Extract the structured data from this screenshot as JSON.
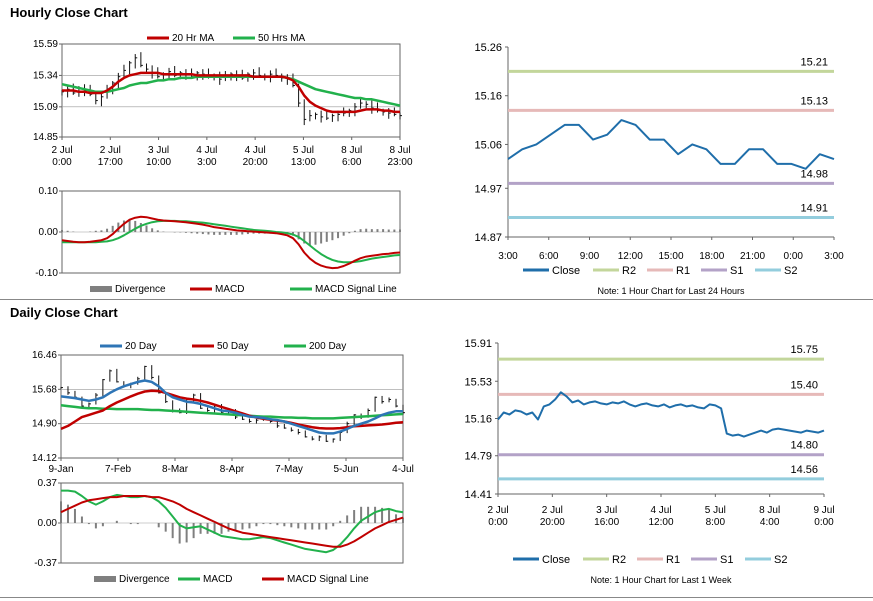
{
  "sections": {
    "hourly_title": "Hourly Close Chart",
    "daily_title": "Daily Close Chart"
  },
  "colors": {
    "red": "#c00000",
    "green": "#22b14c",
    "blue": "#2e75b6",
    "close_blue": "#1f6eaa",
    "gray": "#7f7f7f",
    "r2": "#c3d69b",
    "r1": "#e6b9b8",
    "s1": "#b3a2c7",
    "s2": "#93cddd"
  },
  "chart_data": [
    {
      "id": "hourly_price",
      "type": "line",
      "title": "Hourly Close Chart",
      "legend": [
        "20 Hr MA",
        "50 Hrs MA"
      ],
      "ylim": [
        14.85,
        15.59
      ],
      "y_ticks": [
        "15.59",
        "15.34",
        "15.09",
        "14.85"
      ],
      "x_ticks": [
        [
          "2 Jul",
          "0:00"
        ],
        [
          "2 Jul",
          "17:00"
        ],
        [
          "3 Jul",
          "10:00"
        ],
        [
          "4 Jul",
          "3:00"
        ],
        [
          "4 Jul",
          "20:00"
        ],
        [
          "5 Jul",
          "13:00"
        ],
        [
          "8 Jul",
          "6:00"
        ],
        [
          "8 Jul",
          "23:00"
        ]
      ],
      "price": [
        15.21,
        15.23,
        15.2,
        15.24,
        15.22,
        15.19,
        15.14,
        15.17,
        15.22,
        15.28,
        15.33,
        15.38,
        15.44,
        15.48,
        15.42,
        15.39,
        15.36,
        15.33,
        15.35,
        15.37,
        15.34,
        15.36,
        15.35,
        15.33,
        15.36,
        15.35,
        15.33,
        15.34,
        15.31,
        15.33,
        15.35,
        15.34,
        15.32,
        15.35,
        15.36,
        15.34,
        15.33,
        15.35,
        15.34,
        15.32,
        15.31,
        15.26,
        15.12,
        14.99,
        15.02,
        15.03,
        15.01,
        15.0,
        15.02,
        15.03,
        15.04,
        15.06,
        15.09,
        15.12,
        15.11,
        15.08,
        15.06,
        15.05,
        15.04,
        15.03,
        15.02
      ],
      "ma20": [
        15.22,
        15.22,
        15.22,
        15.21,
        15.21,
        15.2,
        15.2,
        15.2,
        15.22,
        15.25,
        15.29,
        15.32,
        15.34,
        15.35,
        15.36,
        15.36,
        15.36,
        15.36,
        15.35,
        15.35,
        15.35,
        15.35,
        15.35,
        15.35,
        15.34,
        15.34,
        15.34,
        15.34,
        15.34,
        15.34,
        15.34,
        15.34,
        15.34,
        15.34,
        15.33,
        15.33,
        15.33,
        15.33,
        15.33,
        15.33,
        15.32,
        15.3,
        15.25,
        15.18,
        15.13,
        15.1,
        15.08,
        15.06,
        15.05,
        15.05,
        15.05,
        15.05,
        15.05,
        15.06,
        15.07,
        15.07,
        15.07,
        15.06,
        15.06,
        15.05,
        15.05
      ],
      "ma50": [
        15.27,
        15.26,
        15.25,
        15.24,
        15.23,
        15.22,
        15.21,
        15.21,
        15.21,
        15.22,
        15.23,
        15.24,
        15.26,
        15.27,
        15.28,
        15.28,
        15.29,
        15.3,
        15.3,
        15.31,
        15.31,
        15.32,
        15.32,
        15.32,
        15.33,
        15.33,
        15.33,
        15.33,
        15.33,
        15.33,
        15.33,
        15.33,
        15.33,
        15.33,
        15.33,
        15.33,
        15.33,
        15.33,
        15.33,
        15.33,
        15.32,
        15.31,
        15.29,
        15.27,
        15.25,
        15.23,
        15.22,
        15.21,
        15.2,
        15.19,
        15.18,
        15.17,
        15.16,
        15.16,
        15.15,
        15.15,
        15.14,
        15.13,
        15.12,
        15.11,
        15.1
      ]
    },
    {
      "id": "hourly_macd",
      "type": "bar",
      "legend": [
        "Divergence",
        "MACD",
        "MACD Signal Line"
      ],
      "ylim": [
        -0.1,
        0.1
      ],
      "y_ticks": [
        "0.10",
        "0.00",
        "-0.10"
      ],
      "macd": [
        -0.02,
        -0.022,
        -0.024,
        -0.025,
        -0.025,
        -0.024,
        -0.022,
        -0.02,
        -0.015,
        -0.005,
        0.008,
        0.02,
        0.03,
        0.035,
        0.037,
        0.036,
        0.033,
        0.03,
        0.028,
        0.027,
        0.026,
        0.025,
        0.024,
        0.022,
        0.02,
        0.018,
        0.015,
        0.012,
        0.01,
        0.008,
        0.006,
        0.004,
        0.003,
        0.002,
        0.001,
        0.0,
        -0.001,
        -0.002,
        -0.003,
        -0.005,
        -0.008,
        -0.015,
        -0.03,
        -0.05,
        -0.065,
        -0.075,
        -0.082,
        -0.086,
        -0.088,
        -0.087,
        -0.083,
        -0.077,
        -0.07,
        -0.064,
        -0.06,
        -0.058,
        -0.056,
        -0.054,
        -0.053,
        -0.051,
        -0.05
      ],
      "signal": [
        -0.025,
        -0.025,
        -0.025,
        -0.025,
        -0.025,
        -0.025,
        -0.025,
        -0.024,
        -0.023,
        -0.02,
        -0.015,
        -0.008,
        0.0,
        0.008,
        0.015,
        0.02,
        0.024,
        0.026,
        0.027,
        0.027,
        0.027,
        0.026,
        0.026,
        0.025,
        0.024,
        0.023,
        0.021,
        0.019,
        0.017,
        0.015,
        0.013,
        0.011,
        0.009,
        0.007,
        0.005,
        0.004,
        0.003,
        0.002,
        0.0,
        -0.001,
        -0.003,
        -0.006,
        -0.012,
        -0.022,
        -0.033,
        -0.044,
        -0.054,
        -0.062,
        -0.068,
        -0.072,
        -0.074,
        -0.074,
        -0.073,
        -0.071,
        -0.068,
        -0.065,
        -0.063,
        -0.061,
        -0.059,
        -0.057,
        -0.056
      ]
    },
    {
      "id": "hourly_24h",
      "type": "line",
      "ylim": [
        14.87,
        15.26
      ],
      "y_ticks": [
        "15.26",
        "15.16",
        "15.06",
        "14.97",
        "14.87"
      ],
      "x_ticks": [
        "3:00",
        "6:00",
        "9:00",
        "12:00",
        "15:00",
        "18:00",
        "21:00",
        "0:00",
        "3:00"
      ],
      "close": [
        15.03,
        15.05,
        15.06,
        15.08,
        15.1,
        15.1,
        15.07,
        15.08,
        15.11,
        15.1,
        15.07,
        15.07,
        15.04,
        15.06,
        15.05,
        15.02,
        15.02,
        15.05,
        15.05,
        15.02,
        15.02,
        15.01,
        15.04,
        15.03
      ],
      "levels": {
        "R2": 15.21,
        "R1": 15.13,
        "S1": 14.98,
        "S2": 14.91
      },
      "level_labels": {
        "R2": "15.21",
        "R1": "15.13",
        "S1": "14.98",
        "S2": "14.91"
      },
      "legend": [
        "Close",
        "R2",
        "R1",
        "S1",
        "S2"
      ],
      "note": "Note: 1 Hour Chart for Last 24 Hours"
    },
    {
      "id": "daily_price",
      "type": "line",
      "title": "Daily Close Chart",
      "legend": [
        "20 Day",
        "50 Day",
        "200 Day"
      ],
      "ylim": [
        14.12,
        16.46
      ],
      "y_ticks": [
        "16.46",
        "15.68",
        "14.90",
        "14.12"
      ],
      "x_ticks": [
        "9-Jan",
        "7-Feb",
        "8-Mar",
        "8-Apr",
        "7-May",
        "5-Jun",
        "4-Jul"
      ],
      "price": [
        15.72,
        15.6,
        15.5,
        15.3,
        15.35,
        15.55,
        15.9,
        16.1,
        15.85,
        15.75,
        15.8,
        15.92,
        16.2,
        15.95,
        15.6,
        15.4,
        15.2,
        15.15,
        15.45,
        15.55,
        15.25,
        15.2,
        15.3,
        15.15,
        15.2,
        15.05,
        15.0,
        14.95,
        14.98,
        15.0,
        14.95,
        14.85,
        14.8,
        14.75,
        14.7,
        14.6,
        14.55,
        14.6,
        14.5,
        14.55,
        14.7,
        14.9,
        15.1,
        15.05,
        15.2,
        15.5,
        15.4,
        15.45,
        15.3,
        15.15
      ],
      "ma20": [
        15.52,
        15.5,
        15.48,
        15.45,
        15.42,
        15.45,
        15.5,
        15.6,
        15.68,
        15.75,
        15.8,
        15.85,
        15.88,
        15.85,
        15.75,
        15.6,
        15.5,
        15.45,
        15.4,
        15.38,
        15.35,
        15.3,
        15.25,
        15.2,
        15.18,
        15.15,
        15.1,
        15.06,
        15.05,
        15.03,
        15.0,
        14.98,
        14.95,
        14.9,
        14.85,
        14.8,
        14.75,
        14.7,
        14.68,
        14.68,
        14.72,
        14.78,
        14.85,
        14.9,
        14.95,
        15.02,
        15.1,
        15.15,
        15.18,
        15.18
      ],
      "ma50": [
        14.78,
        14.85,
        14.95,
        15.05,
        15.1,
        15.15,
        15.2,
        15.3,
        15.38,
        15.45,
        15.52,
        15.58,
        15.63,
        15.65,
        15.64,
        15.6,
        15.55,
        15.5,
        15.47,
        15.45,
        15.42,
        15.38,
        15.33,
        15.28,
        15.23,
        15.18,
        15.13,
        15.08,
        15.04,
        15.01,
        14.99,
        14.97,
        14.95,
        14.92,
        14.88,
        14.85,
        14.82,
        14.8,
        14.79,
        14.79,
        14.8,
        14.82,
        14.84,
        14.85,
        14.86,
        14.87,
        14.88,
        14.9,
        14.92,
        14.93
      ],
      "ma200": [
        15.32,
        15.3,
        15.28,
        15.26,
        15.25,
        15.25,
        15.24,
        15.24,
        15.23,
        15.23,
        15.23,
        15.23,
        15.22,
        15.21,
        15.21,
        15.2,
        15.19,
        15.18,
        15.17,
        15.16,
        15.15,
        15.14,
        15.13,
        15.12,
        15.11,
        15.1,
        15.09,
        15.08,
        15.07,
        15.06,
        15.06,
        15.05,
        15.04,
        15.04,
        15.03,
        15.03,
        15.02,
        15.02,
        15.02,
        15.02,
        15.03,
        15.04,
        15.05,
        15.06,
        15.07,
        15.08,
        15.09,
        15.1,
        15.11,
        15.12
      ]
    },
    {
      "id": "daily_macd",
      "type": "bar",
      "legend": [
        "Divergence",
        "MACD",
        "MACD Signal Line"
      ],
      "ylim": [
        -0.37,
        0.37
      ],
      "y_ticks": [
        "0.37",
        "0.00",
        "-0.37"
      ],
      "macd": [
        0.3,
        0.3,
        0.29,
        0.25,
        0.2,
        0.17,
        0.2,
        0.24,
        0.26,
        0.25,
        0.24,
        0.24,
        0.25,
        0.24,
        0.2,
        0.14,
        0.06,
        -0.02,
        -0.05,
        -0.04,
        -0.03,
        -0.06,
        -0.09,
        -0.12,
        -0.13,
        -0.14,
        -0.15,
        -0.15,
        -0.14,
        -0.13,
        -0.14,
        -0.16,
        -0.18,
        -0.2,
        -0.22,
        -0.24,
        -0.25,
        -0.26,
        -0.27,
        -0.25,
        -0.2,
        -0.13,
        -0.05,
        0.02,
        0.06,
        0.1,
        0.12,
        0.13,
        0.11,
        0.1
      ],
      "signal": [
        0.1,
        0.13,
        0.16,
        0.19,
        0.21,
        0.22,
        0.23,
        0.24,
        0.24,
        0.25,
        0.25,
        0.25,
        0.25,
        0.24,
        0.24,
        0.22,
        0.2,
        0.17,
        0.13,
        0.1,
        0.07,
        0.04,
        0.01,
        -0.02,
        -0.05,
        -0.07,
        -0.09,
        -0.1,
        -0.11,
        -0.12,
        -0.13,
        -0.14,
        -0.15,
        -0.16,
        -0.17,
        -0.18,
        -0.19,
        -0.2,
        -0.21,
        -0.22,
        -0.22,
        -0.2,
        -0.17,
        -0.13,
        -0.09,
        -0.05,
        -0.02,
        0.01,
        0.03,
        0.05
      ]
    },
    {
      "id": "daily_week",
      "type": "line",
      "ylim": [
        14.41,
        15.91
      ],
      "y_ticks": [
        "15.91",
        "15.53",
        "15.16",
        "14.79",
        "14.41"
      ],
      "x_ticks": [
        [
          "2 Jul",
          "0:00"
        ],
        [
          "2 Jul",
          "20:00"
        ],
        [
          "3 Jul",
          "16:00"
        ],
        [
          "4 Jul",
          "12:00"
        ],
        [
          "5 Jul",
          "8:00"
        ],
        [
          "8 Jul",
          "4:00"
        ],
        [
          "9 Jul",
          "0:00"
        ]
      ],
      "close": [
        15.15,
        15.22,
        15.2,
        15.24,
        15.23,
        15.2,
        15.22,
        15.15,
        15.28,
        15.3,
        15.35,
        15.42,
        15.38,
        15.32,
        15.34,
        15.3,
        15.32,
        15.33,
        15.31,
        15.3,
        15.32,
        15.31,
        15.33,
        15.3,
        15.28,
        15.3,
        15.31,
        15.29,
        15.28,
        15.3,
        15.27,
        15.29,
        15.3,
        15.28,
        15.29,
        15.27,
        15.26,
        15.3,
        15.29,
        15.26,
        15.01,
        14.99,
        15.0,
        14.98,
        15.0,
        15.02,
        15.04,
        15.02,
        15.05,
        15.06,
        15.05,
        15.04,
        15.03,
        15.02,
        15.04,
        15.03,
        15.02,
        15.04
      ],
      "levels": {
        "R2": 15.75,
        "R1": 15.4,
        "S1": 14.8,
        "S2": 14.56
      },
      "level_labels": {
        "R2": "15.75",
        "R1": "15.40",
        "S1": "14.80",
        "S2": "14.56"
      },
      "legend": [
        "Close",
        "R2",
        "R1",
        "S1",
        "S2"
      ],
      "note": "Note: 1 Hour Chart for Last 1 Week"
    }
  ]
}
